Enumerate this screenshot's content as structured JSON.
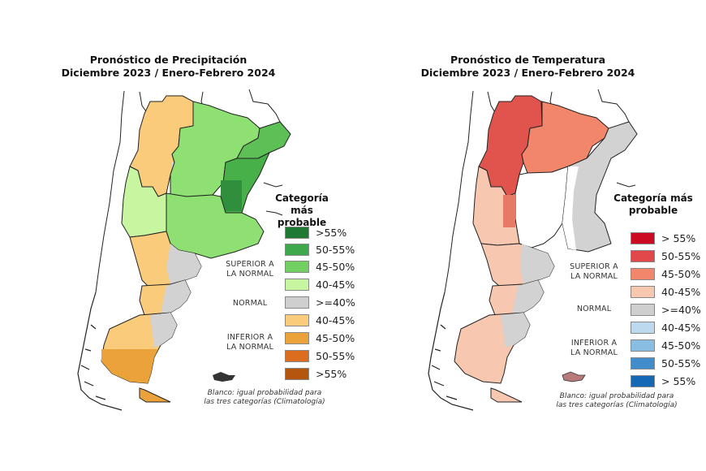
{
  "maps": [
    {
      "id": "precipitation",
      "title_line1": "Pronóstico de Precipitación",
      "title_line2": "Diciembre 2023 / Enero-Febrero 2024",
      "legend_title_line1": "Categoría más",
      "legend_title_line2": "probable",
      "category_above": [
        "SUPERIOR A",
        "LA NORMAL"
      ],
      "category_normal": "NORMAL",
      "category_below": [
        "INFERIOR A",
        "LA NORMAL"
      ],
      "legend": [
        {
          "label": ">55%",
          "color": "#1e7a32"
        },
        {
          "label": "50-55%",
          "color": "#3ea84c"
        },
        {
          "label": "45-50%",
          "color": "#72d062"
        },
        {
          "label": "40-45%",
          "color": "#c8f5a0"
        },
        {
          "label": ">=40%",
          "color": "#cfcfcf"
        },
        {
          "label": "40-45%",
          "color": "#fbcb7c"
        },
        {
          "label": "45-50%",
          "color": "#eba23a"
        },
        {
          "label": "50-55%",
          "color": "#dd6d1e"
        },
        {
          "label": ">55%",
          "color": "#b5560f"
        }
      ],
      "note_line1": "Blanco: igual probabilidad para",
      "note_line2": "las tres categorías (Climatología)"
    },
    {
      "id": "temperature",
      "title_line1": "Pronóstico de Temperatura",
      "title_line2": "Diciembre 2023 / Enero-Febrero 2024",
      "legend_title_line1": "Categoría más",
      "legend_title_line2": "probable",
      "category_above": [
        "SUPERIOR A",
        "LA NORMAL"
      ],
      "category_normal": "NORMAL",
      "category_below": [
        "INFERIOR A",
        "LA NORMAL"
      ],
      "legend": [
        {
          "label": "> 55%",
          "color": "#cc0b22"
        },
        {
          "label": "50-55%",
          "color": "#e0484a"
        },
        {
          "label": "45-50%",
          "color": "#f1866a"
        },
        {
          "label": "40-45%",
          "color": "#f7c7b0"
        },
        {
          "label": ">=40%",
          "color": "#cfcfcf"
        },
        {
          "label": "40-45%",
          "color": "#bcd9ee"
        },
        {
          "label": "45-50%",
          "color": "#89bde2"
        },
        {
          "label": "50-55%",
          "color": "#418ccb"
        },
        {
          "label": "> 55%",
          "color": "#1568b3"
        }
      ],
      "note_line1": "Blanco: igual probabilidad para",
      "note_line2": "las tres categorías (Climatología)"
    }
  ]
}
